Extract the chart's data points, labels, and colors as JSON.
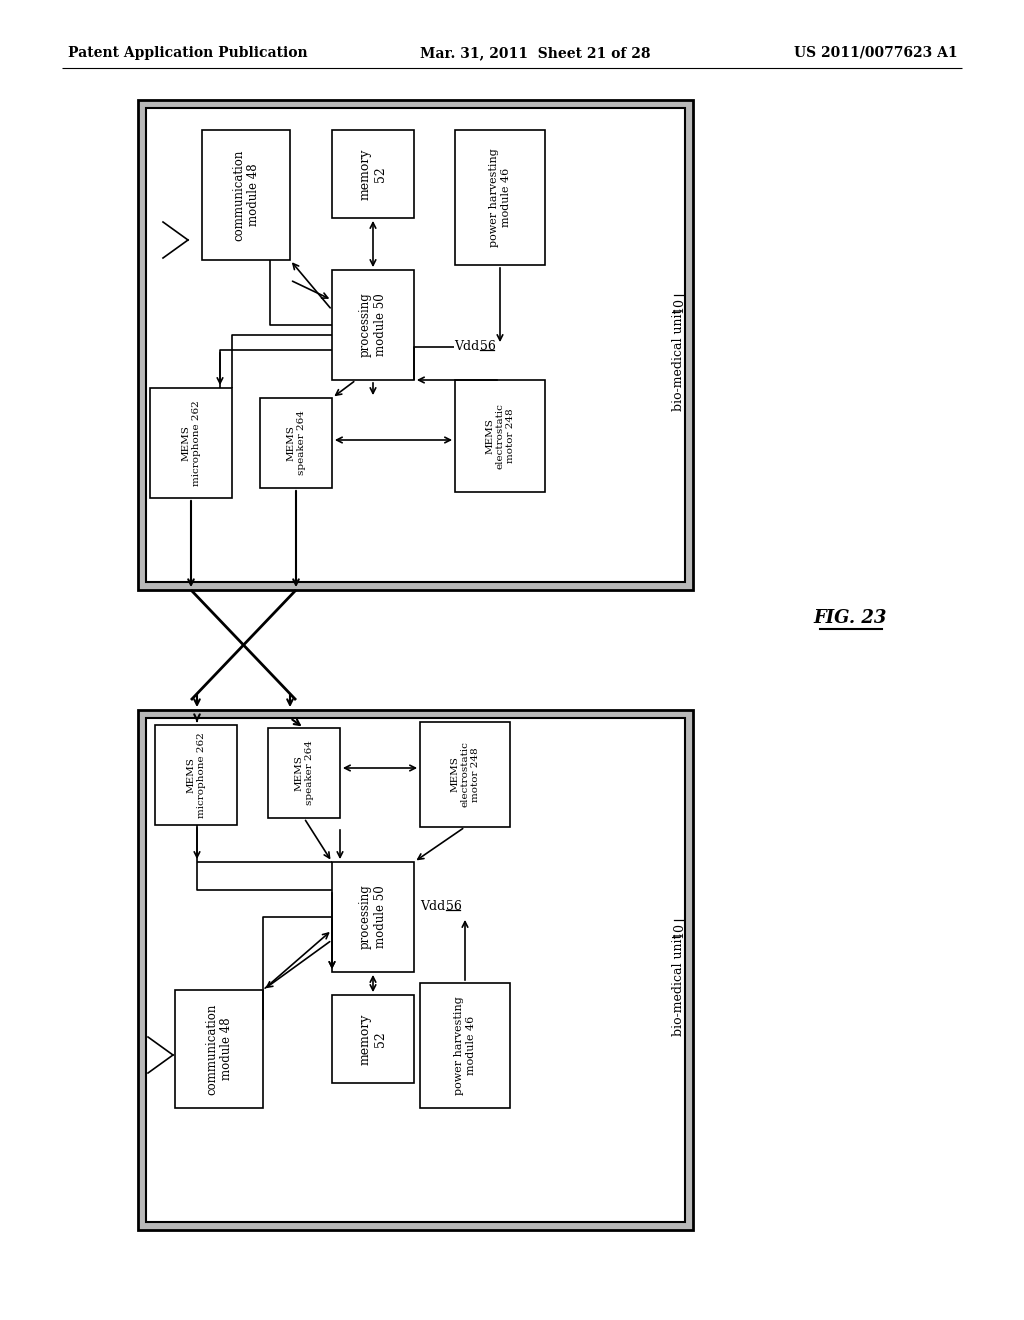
{
  "header_left": "Patent Application Publication",
  "header_mid": "Mar. 31, 2011  Sheet 21 of 28",
  "header_right": "US 2011/0077623 A1",
  "fig_label": "FIG. 23",
  "bg": "#ffffff",
  "gray": "#c0c0c0"
}
